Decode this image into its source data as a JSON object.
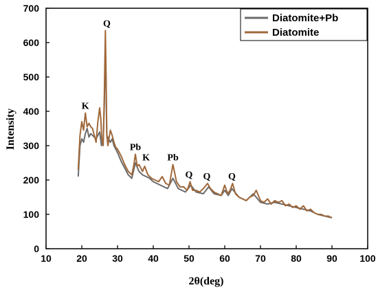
{
  "chart_data": {
    "type": "line",
    "xlabel": "2θ(deg)",
    "ylabel": "Intensity",
    "xlim": [
      10,
      100
    ],
    "ylim": [
      0,
      700
    ],
    "xticks": [
      10,
      20,
      30,
      40,
      50,
      60,
      70,
      80,
      90,
      100
    ],
    "yticks": [
      0,
      100,
      200,
      300,
      400,
      500,
      600,
      700
    ],
    "grid": false,
    "legend_position": "top-right",
    "series": [
      {
        "name": "Diatomite+Pb",
        "color": "#6b6b6b",
        "x": [
          19.0,
          19.5,
          20.0,
          20.5,
          21.0,
          21.5,
          22.0,
          22.5,
          23.0,
          23.5,
          24.0,
          24.5,
          25.0,
          25.5,
          26.0,
          26.3,
          26.6,
          27.0,
          27.5,
          28.0,
          28.5,
          29.0,
          30.0,
          31.0,
          32.0,
          33.0,
          34.0,
          35.0,
          36.0,
          37.0,
          38.0,
          39.0,
          40.0,
          42.0,
          44.0,
          45.5,
          47.0,
          49.0,
          50.5,
          52.0,
          54.0,
          55.5,
          57.0,
          59.0,
          60.0,
          61.0,
          62.0,
          64.0,
          66.0,
          68.0,
          70.0,
          72.0,
          74.0,
          76.0,
          78.0,
          80.0,
          82.0,
          84.0,
          86.0,
          88.0,
          90.0
        ],
        "y": [
          210,
          300,
          320,
          310,
          335,
          350,
          325,
          335,
          330,
          325,
          320,
          330,
          340,
          300,
          320,
          420,
          600,
          330,
          320,
          310,
          320,
          300,
          280,
          255,
          235,
          215,
          205,
          250,
          225,
          215,
          210,
          205,
          195,
          185,
          175,
          205,
          175,
          165,
          185,
          165,
          160,
          180,
          160,
          155,
          170,
          155,
          175,
          150,
          140,
          160,
          135,
          130,
          135,
          130,
          125,
          120,
          115,
          110,
          100,
          95,
          90
        ]
      },
      {
        "name": "Diatomite",
        "color": "#a0683a",
        "x": [
          19.0,
          19.5,
          20.0,
          20.5,
          21.0,
          21.5,
          22.0,
          22.5,
          23.0,
          23.5,
          24.0,
          24.5,
          25.0,
          25.3,
          25.6,
          26.0,
          26.3,
          26.6,
          26.8,
          27.0,
          27.3,
          27.6,
          28.0,
          28.5,
          29.0,
          29.5,
          30.0,
          31.0,
          32.0,
          33.0,
          34.0,
          34.5,
          35.0,
          35.5,
          36.0,
          37.0,
          37.6,
          38.5,
          39.5,
          40.5,
          41.5,
          42.5,
          43.5,
          44.5,
          45.5,
          46.5,
          47.5,
          48.5,
          49.5,
          50.3,
          51.0,
          52.0,
          53.0,
          54.0,
          55.2,
          56.0,
          57.0,
          58.0,
          59.0,
          60.0,
          60.8,
          61.5,
          62.2,
          63.0,
          64.0,
          65.0,
          66.0,
          67.0,
          68.0,
          68.8,
          70.0,
          71.0,
          72.0,
          73.0,
          74.0,
          75.0,
          76.0,
          77.0,
          78.0,
          79.0,
          80.0,
          81.0,
          82.0,
          83.0,
          84.0,
          85.0,
          86.0,
          87.0,
          88.0,
          89.0,
          90.0
        ],
        "y": [
          230,
          330,
          370,
          345,
          395,
          355,
          365,
          355,
          350,
          330,
          310,
          370,
          410,
          380,
          320,
          300,
          450,
          635,
          500,
          330,
          300,
          320,
          345,
          330,
          310,
          295,
          290,
          270,
          245,
          225,
          215,
          240,
          275,
          240,
          245,
          225,
          240,
          215,
          205,
          200,
          195,
          210,
          190,
          185,
          245,
          195,
          180,
          180,
          170,
          195,
          170,
          170,
          165,
          175,
          190,
          175,
          165,
          160,
          155,
          185,
          160,
          170,
          190,
          160,
          150,
          145,
          140,
          150,
          155,
          170,
          140,
          135,
          145,
          130,
          140,
          135,
          140,
          125,
          130,
          120,
          125,
          115,
          125,
          110,
          115,
          105,
          100,
          100,
          95,
          95,
          90
        ]
      }
    ],
    "annotations": [
      {
        "text": "K",
        "x": 21.0,
        "y": 395
      },
      {
        "text": "Q",
        "x": 27.0,
        "y": 635
      },
      {
        "text": "Pb",
        "x": 35.0,
        "y": 275
      },
      {
        "text": "K",
        "x": 38.0,
        "y": 245
      },
      {
        "text": "Pb",
        "x": 45.5,
        "y": 245
      },
      {
        "text": "Q",
        "x": 50.0,
        "y": 195
      },
      {
        "text": "Q",
        "x": 55.0,
        "y": 190
      },
      {
        "text": "Q",
        "x": 62.0,
        "y": 190
      }
    ]
  }
}
